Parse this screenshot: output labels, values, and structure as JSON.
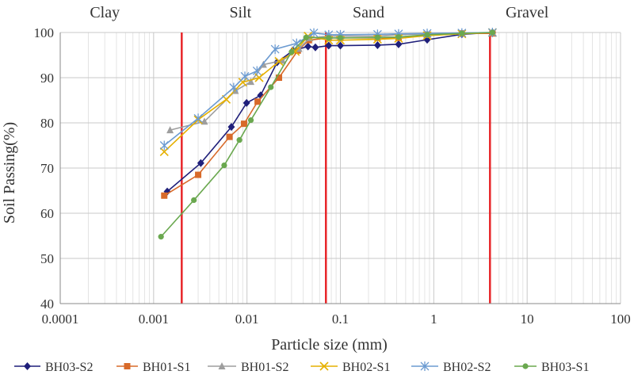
{
  "chart_data": {
    "type": "line",
    "title": "",
    "xlabel": "Particle size (mm)",
    "ylabel": "Soil Passing(%)",
    "xscale": "log",
    "xlim": [
      0.0001,
      100
    ],
    "ylim": [
      40,
      100
    ],
    "x_ticks": [
      0.0001,
      0.001,
      0.01,
      0.1,
      1,
      10,
      100
    ],
    "x_tick_labels": [
      "0.0001",
      "0.001",
      "0.01",
      "0.1",
      "1",
      "10",
      "100"
    ],
    "y_ticks": [
      40,
      50,
      60,
      70,
      80,
      90,
      100
    ],
    "y_tick_labels": [
      "40",
      "50",
      "60",
      "70",
      "80",
      "90",
      "100"
    ],
    "grid": true,
    "boundaries": [
      {
        "x": 0.002,
        "color": "#e8262a"
      },
      {
        "x": 0.07,
        "color": "#e8262a"
      },
      {
        "x": 4.0,
        "color": "#e8262a"
      }
    ],
    "regions": [
      {
        "label": "Clay",
        "x": 0.0003
      },
      {
        "label": "Silt",
        "x": 0.0085
      },
      {
        "label": "Sand",
        "x": 0.2
      },
      {
        "label": "Gravel",
        "x": 10
      }
    ],
    "legend_position": "bottom",
    "series": [
      {
        "name": "BH03-S2",
        "color": "#1f1f7a",
        "marker": "diamond",
        "x": [
          0.0014,
          0.0032,
          0.0068,
          0.0099,
          0.014,
          0.021,
          0.031,
          0.045,
          0.054,
          0.075,
          0.1,
          0.25,
          0.42,
          0.85,
          2.0,
          4.25
        ],
        "y": [
          64.8,
          71.1,
          79.1,
          84.4,
          86.1,
          93.4,
          96.0,
          96.9,
          96.7,
          97.1,
          97.1,
          97.2,
          97.4,
          98.4,
          99.6,
          100
        ]
      },
      {
        "name": "BH01-S1",
        "color": "#d86a2a",
        "marker": "square",
        "x": [
          0.0013,
          0.003,
          0.0065,
          0.0093,
          0.013,
          0.022,
          0.035,
          0.046,
          0.075,
          0.1,
          0.25,
          0.42,
          0.85,
          2.0,
          4.25
        ],
        "y": [
          63.9,
          68.5,
          76.9,
          79.8,
          84.7,
          90.0,
          96.0,
          98.3,
          98.8,
          98.8,
          98.8,
          98.8,
          99.5,
          99.8,
          99.8
        ]
      },
      {
        "name": "BH01-S2",
        "color": "#9e9e9e",
        "marker": "triangle",
        "x": [
          0.0015,
          0.0035,
          0.0075,
          0.011,
          0.015,
          0.024,
          0.036,
          0.047,
          0.075,
          0.1,
          0.25,
          0.42,
          0.85,
          2.0,
          4.25
        ],
        "y": [
          78.4,
          80.3,
          87.1,
          89.1,
          92.9,
          93.8,
          96.4,
          98.8,
          99.2,
          99.2,
          99.2,
          99.5,
          99.7,
          99.9,
          100
        ]
      },
      {
        "name": "BH02-S1",
        "color": "#e6b000",
        "marker": "x",
        "x": [
          0.0013,
          0.003,
          0.006,
          0.009,
          0.0135,
          0.022,
          0.033,
          0.045,
          0.075,
          0.1,
          0.25,
          0.42,
          0.85,
          2.0,
          4.25
        ],
        "y": [
          73.6,
          80.7,
          85.2,
          89.0,
          90.0,
          93.6,
          95.8,
          99.2,
          98.3,
          98.3,
          98.5,
          98.7,
          99.3,
          99.7,
          100
        ]
      },
      {
        "name": "BH02-S2",
        "color": "#6c9bd1",
        "marker": "star",
        "x": [
          0.0013,
          0.003,
          0.0072,
          0.0095,
          0.0128,
          0.02,
          0.034,
          0.052,
          0.075,
          0.1,
          0.25,
          0.42,
          0.85,
          2.0,
          4.25
        ],
        "y": [
          75.0,
          81.0,
          87.8,
          90.3,
          91.5,
          96.3,
          97.6,
          99.9,
          99.5,
          99.5,
          99.6,
          99.7,
          99.8,
          99.9,
          100
        ]
      },
      {
        "name": "BH03-S1",
        "color": "#6aa84f",
        "marker": "circle",
        "x": [
          0.0012,
          0.0027,
          0.0057,
          0.0083,
          0.011,
          0.018,
          0.03,
          0.043,
          0.075,
          0.1,
          0.25,
          0.42,
          0.85,
          2.0,
          4.25
        ],
        "y": [
          54.8,
          62.9,
          70.6,
          76.2,
          80.6,
          87.9,
          95.7,
          98.9,
          98.8,
          98.8,
          98.9,
          99.0,
          99.5,
          99.8,
          100
        ]
      }
    ]
  }
}
